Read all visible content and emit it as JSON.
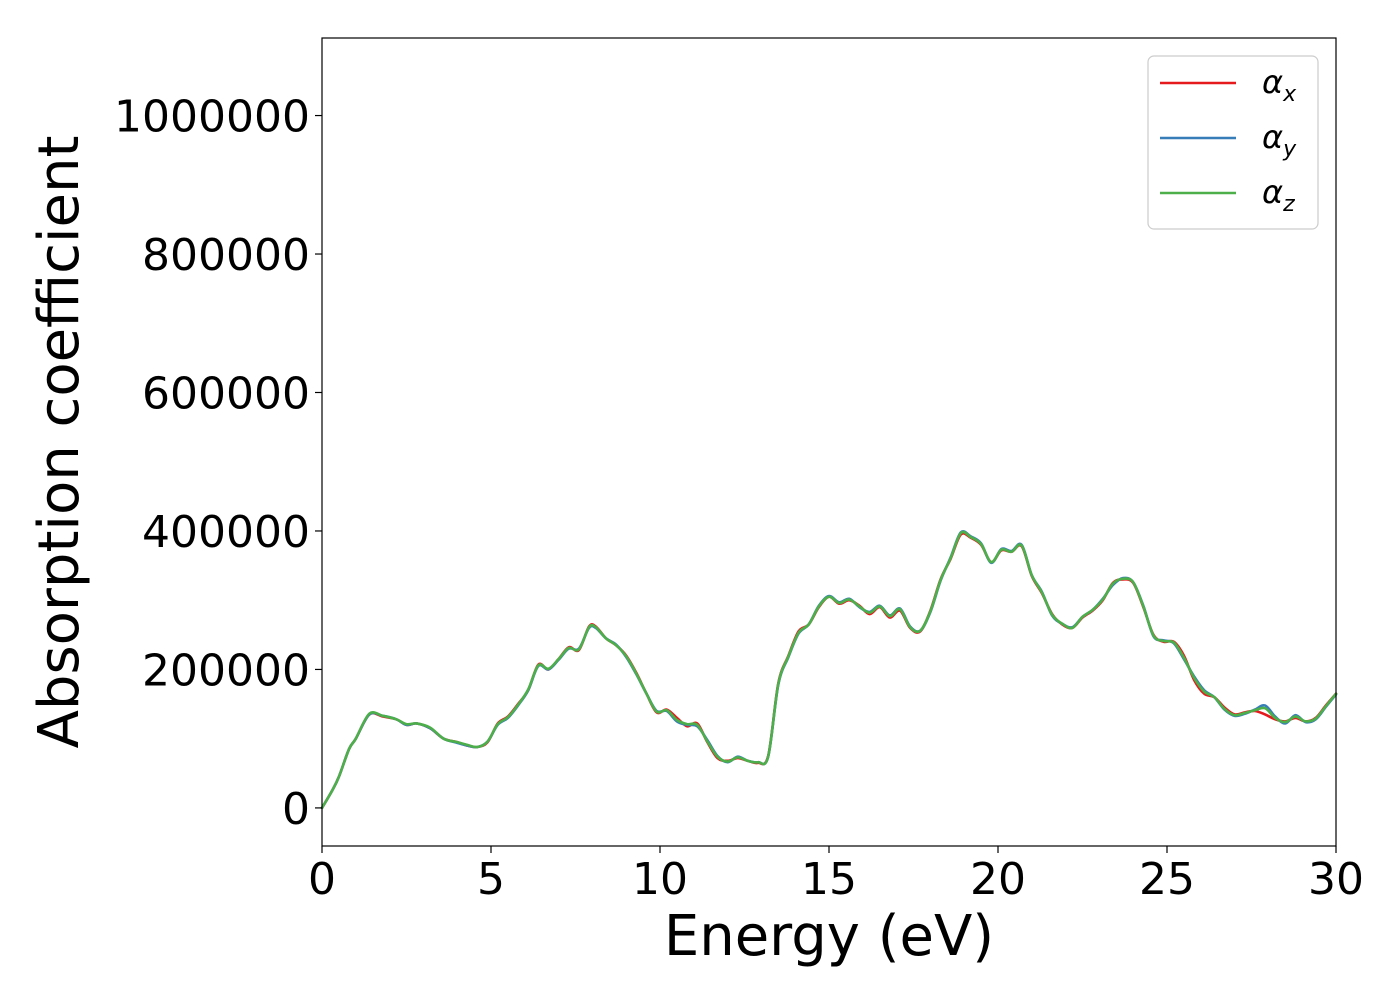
{
  "chart_data": {
    "type": "line",
    "xlabel": "Energy (eV)",
    "ylabel": "Absorption coefficient",
    "xlim": [
      0,
      30
    ],
    "ylim": [
      -55000,
      1112000
    ],
    "xticks": [
      0,
      5,
      10,
      15,
      20,
      25,
      30
    ],
    "xtick_labels": [
      "0",
      "5",
      "10",
      "15",
      "20",
      "25",
      "30"
    ],
    "yticks": [
      0,
      200000,
      400000,
      600000,
      800000,
      1000000
    ],
    "ytick_labels": [
      "0",
      "200000",
      "400000",
      "600000",
      "800000",
      "1000000"
    ],
    "grid": false,
    "legend_position": "top-right",
    "x": [
      0,
      0.3,
      0.5,
      0.8,
      1.0,
      1.4,
      1.8,
      2.2,
      2.5,
      2.8,
      3.2,
      3.6,
      4.0,
      4.3,
      4.6,
      4.9,
      5.2,
      5.5,
      5.8,
      6.1,
      6.4,
      6.7,
      7.0,
      7.3,
      7.6,
      7.9,
      8.1,
      8.4,
      8.7,
      9.0,
      9.3,
      9.6,
      9.9,
      10.2,
      10.5,
      10.8,
      11.1,
      11.4,
      11.7,
      12.0,
      12.3,
      12.6,
      12.9,
      13.2,
      13.5,
      13.8,
      14.1,
      14.4,
      14.7,
      15.0,
      15.3,
      15.6,
      15.9,
      16.2,
      16.5,
      16.8,
      17.1,
      17.4,
      17.7,
      18.0,
      18.3,
      18.6,
      18.9,
      19.2,
      19.5,
      19.8,
      20.1,
      20.4,
      20.7,
      21.0,
      21.3,
      21.6,
      21.9,
      22.2,
      22.5,
      22.8,
      23.1,
      23.4,
      23.7,
      24.0,
      24.3,
      24.6,
      24.9,
      25.2,
      25.5,
      25.8,
      26.1,
      26.4,
      26.7,
      27.0,
      27.3,
      27.6,
      27.9,
      28.2,
      28.5,
      28.8,
      29.1,
      29.4,
      29.7,
      30.0
    ],
    "series": [
      {
        "name": "α_x",
        "label_main": "α",
        "label_sub": "x",
        "color": "#e41a1c",
        "values": [
          0,
          25000,
          45000,
          85000,
          100000,
          135000,
          132000,
          128000,
          120000,
          122000,
          115000,
          100000,
          95000,
          90000,
          88000,
          95000,
          122000,
          132000,
          150000,
          170000,
          207000,
          200000,
          215000,
          232000,
          228000,
          262000,
          262000,
          245000,
          235000,
          220000,
          195000,
          165000,
          138000,
          142000,
          130000,
          118000,
          122000,
          95000,
          72000,
          68000,
          72000,
          68000,
          65000,
          75000,
          180000,
          220000,
          255000,
          265000,
          290000,
          305000,
          295000,
          300000,
          292000,
          280000,
          290000,
          275000,
          285000,
          260000,
          255000,
          285000,
          330000,
          360000,
          395000,
          390000,
          380000,
          355000,
          372000,
          370000,
          378000,
          335000,
          310000,
          280000,
          265000,
          260000,
          275000,
          285000,
          300000,
          325000,
          330000,
          325000,
          290000,
          250000,
          240000,
          240000,
          220000,
          185000,
          165000,
          160000,
          145000,
          135000,
          138000,
          140000,
          135000,
          128000,
          125000,
          130000,
          125000,
          130000,
          148000,
          165000
        ]
      },
      {
        "name": "α_y",
        "label_main": "α",
        "label_sub": "y",
        "color": "#377eb8",
        "values": [
          0,
          25000,
          45000,
          85000,
          100000,
          135000,
          133000,
          128000,
          120000,
          122000,
          115000,
          100000,
          94000,
          90000,
          88000,
          96000,
          120000,
          130000,
          148000,
          170000,
          205000,
          200000,
          214000,
          230000,
          230000,
          260000,
          260000,
          245000,
          236000,
          218000,
          193000,
          165000,
          140000,
          140000,
          125000,
          120000,
          118000,
          98000,
          75000,
          66000,
          74000,
          68000,
          66000,
          74000,
          178000,
          218000,
          252000,
          265000,
          292000,
          306000,
          297000,
          302000,
          290000,
          283000,
          292000,
          278000,
          288000,
          262000,
          256000,
          283000,
          328000,
          362000,
          398000,
          392000,
          382000,
          354000,
          374000,
          371000,
          380000,
          336000,
          312000,
          278000,
          266000,
          261000,
          276000,
          286000,
          302000,
          322000,
          332000,
          326000,
          292000,
          248000,
          242000,
          238000,
          215000,
          190000,
          170000,
          160000,
          142000,
          133000,
          136000,
          142000,
          148000,
          132000,
          122000,
          134000,
          124000,
          128000,
          146000,
          164000
        ]
      },
      {
        "name": "α_z",
        "label_main": "α",
        "label_sub": "z",
        "color": "#4daf4a",
        "values": [
          0,
          25000,
          45000,
          85000,
          100000,
          136000,
          133000,
          128000,
          121000,
          122000,
          116000,
          100000,
          95000,
          91000,
          88000,
          96000,
          121000,
          131000,
          149000,
          171000,
          206000,
          201000,
          215000,
          231000,
          229000,
          261000,
          261000,
          245000,
          235000,
          219000,
          194000,
          165000,
          139000,
          141000,
          127000,
          121000,
          120000,
          96000,
          74000,
          67000,
          73000,
          68000,
          66000,
          74000,
          179000,
          219000,
          253000,
          265000,
          291000,
          305000,
          296000,
          301000,
          291000,
          282000,
          291000,
          277000,
          287000,
          261000,
          256000,
          284000,
          329000,
          361000,
          397000,
          391000,
          381000,
          355000,
          373000,
          370000,
          379000,
          336000,
          311000,
          279000,
          266000,
          260000,
          276000,
          286000,
          301000,
          324000,
          331000,
          326000,
          291000,
          249000,
          241000,
          239000,
          217000,
          188000,
          168000,
          160000,
          143000,
          134000,
          137000,
          141000,
          144000,
          130000,
          124000,
          132000,
          125000,
          129000,
          147000,
          165000
        ]
      }
    ]
  }
}
